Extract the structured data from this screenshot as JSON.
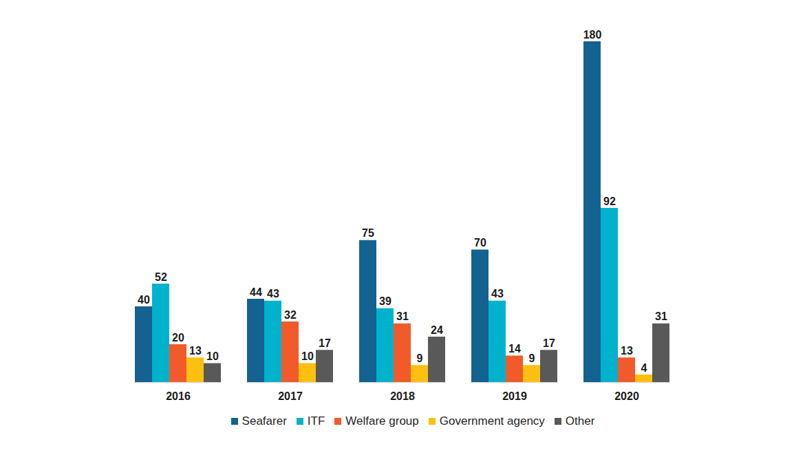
{
  "chart_data": {
    "type": "bar",
    "categories": [
      "2016",
      "2017",
      "2018",
      "2019",
      "2020"
    ],
    "series": [
      {
        "name": "Seafarer",
        "color": "#14628f",
        "values": [
          40,
          44,
          75,
          70,
          180
        ]
      },
      {
        "name": "ITF",
        "color": "#00b2cc",
        "values": [
          52,
          43,
          39,
          43,
          92
        ]
      },
      {
        "name": "Welfare group",
        "color": "#f15a2b",
        "values": [
          20,
          32,
          31,
          14,
          13
        ]
      },
      {
        "name": "Government agency",
        "color": "#fdc010",
        "values": [
          13,
          10,
          9,
          9,
          4
        ]
      },
      {
        "name": "Other",
        "color": "#595959",
        "values": [
          10,
          17,
          24,
          17,
          31
        ]
      }
    ],
    "ylim": [
      0,
      180
    ],
    "grid": false,
    "legend": "bottom",
    "data_labels": true,
    "tick_labels": "x"
  }
}
